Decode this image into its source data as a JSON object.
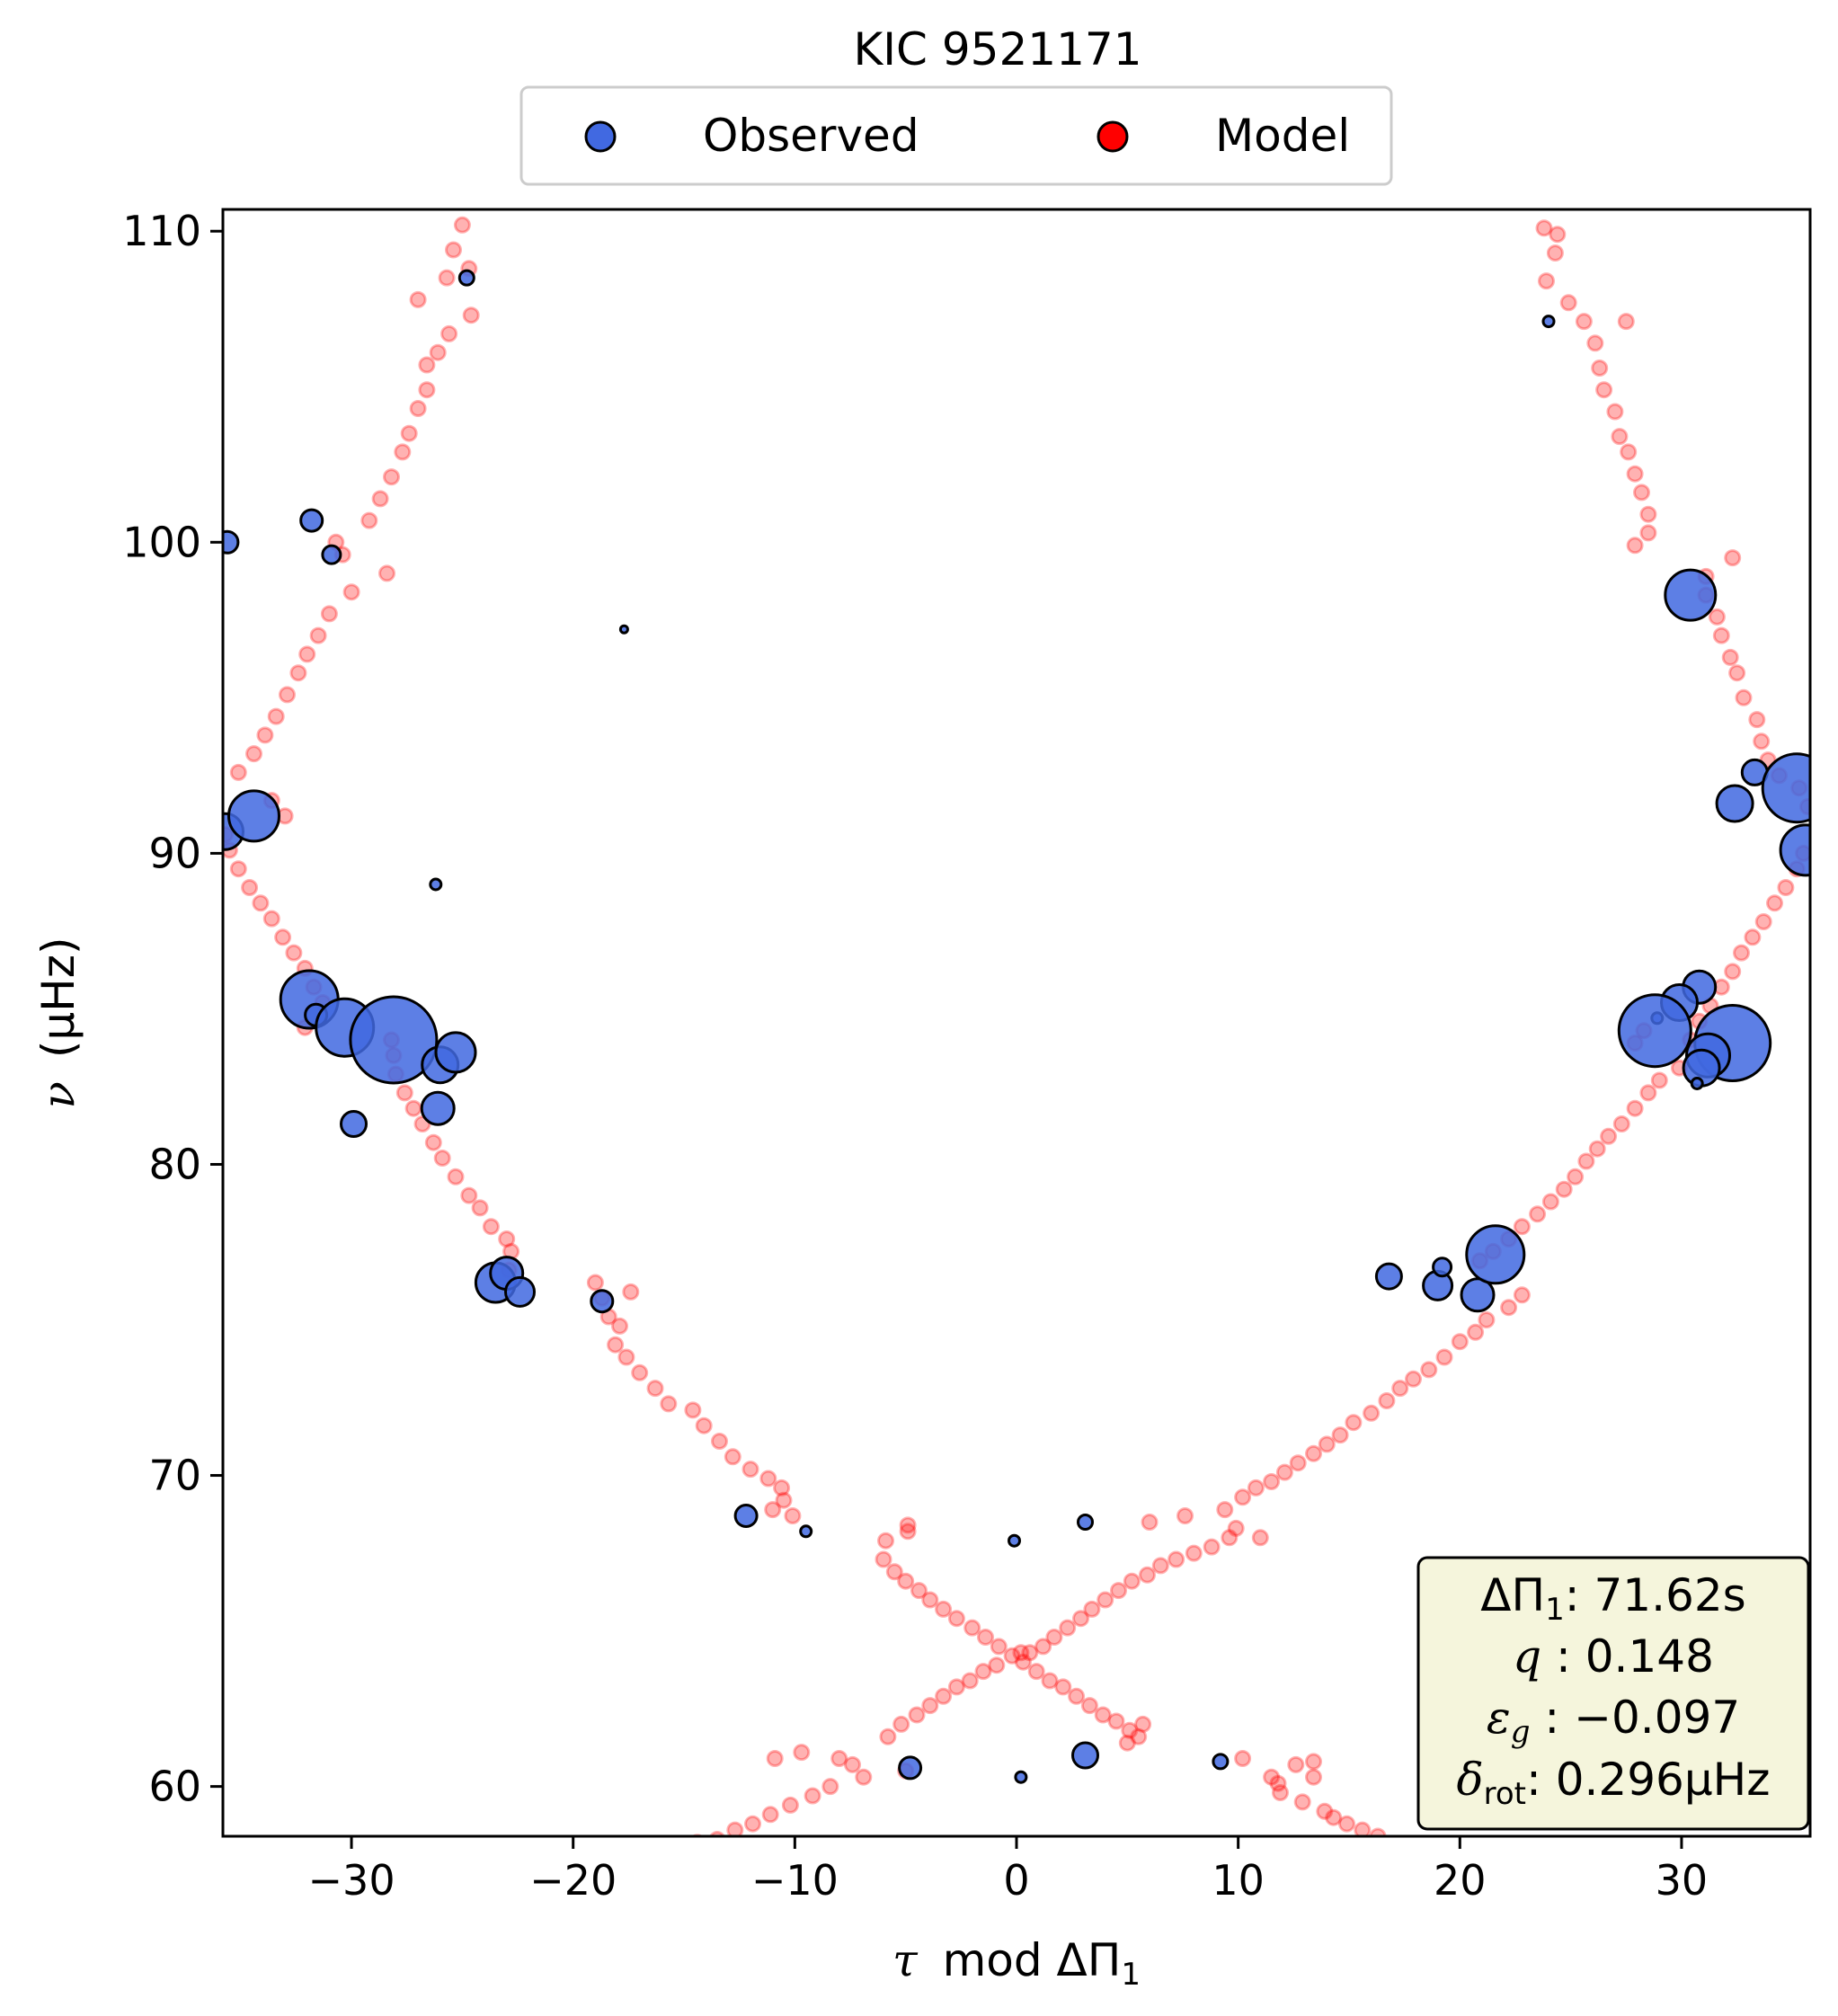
{
  "chart_data": {
    "type": "scatter",
    "title": "KIC 9521171",
    "xlabel_symbol": "τ",
    "xlabel_rest": "mod ΔΠ",
    "xlabel_sub": "1",
    "ylabel_symbol": "ν",
    "ylabel_rest": "(μHz)",
    "xlim": [
      -35.8,
      35.8
    ],
    "ylim": [
      58.4,
      110.7
    ],
    "xticks": [
      -30,
      -20,
      -10,
      0,
      10,
      20,
      30
    ],
    "yticks": [
      60,
      70,
      80,
      90,
      100,
      110
    ],
    "xtick_labels": [
      "−30",
      "−20",
      "−10",
      "0",
      "10",
      "20",
      "30"
    ],
    "ytick_labels": [
      "60",
      "70",
      "80",
      "90",
      "100",
      "110"
    ],
    "grid": false,
    "legend": {
      "placement": "top-center",
      "entries": [
        "Observed",
        "Model"
      ]
    },
    "colors": {
      "observed": "#4169e1",
      "model": "#ff0000",
      "info_box": "#f5f5dc"
    },
    "info_box": {
      "line1_symbol": "ΔΠ",
      "line1_sub": "1",
      "line1_value": ": 71.62s",
      "line2_symbol": "q",
      "line2_value": " :  0.148",
      "line3_symbol": "ε",
      "line3_sub": "g",
      "line3_value": " : −0.097",
      "line4_symbol": "δ",
      "line4_sub": "rot",
      "line4_value": ": 0.296μHz"
    },
    "series": [
      {
        "name": "Model",
        "points": [
          [
            -25.0,
            110.2
          ],
          [
            -25.4,
            109.4
          ],
          [
            -24.7,
            108.8
          ],
          [
            -25.7,
            108.5
          ],
          [
            -27.0,
            107.8
          ],
          [
            -24.6,
            107.3
          ],
          [
            -25.6,
            106.7
          ],
          [
            -26.1,
            106.1
          ],
          [
            -26.6,
            105.7
          ],
          [
            -26.6,
            104.9
          ],
          [
            -27.0,
            104.3
          ],
          [
            -27.4,
            103.5
          ],
          [
            -27.7,
            102.9
          ],
          [
            -28.2,
            102.1
          ],
          [
            -28.7,
            101.4
          ],
          [
            -29.2,
            100.7
          ],
          [
            -30.7,
            100.0
          ],
          [
            -30.4,
            99.6
          ],
          [
            -28.4,
            99.0
          ],
          [
            -30.0,
            98.4
          ],
          [
            -31.0,
            97.7
          ],
          [
            -31.5,
            97.0
          ],
          [
            -32.0,
            96.4
          ],
          [
            -32.4,
            95.8
          ],
          [
            -32.9,
            95.1
          ],
          [
            -33.4,
            94.4
          ],
          [
            -33.9,
            93.8
          ],
          [
            -34.4,
            93.2
          ],
          [
            -35.1,
            92.6
          ],
          [
            -33.6,
            91.7
          ],
          [
            -33.0,
            91.2
          ],
          [
            -35.7,
            90.6
          ],
          [
            -35.5,
            90.1
          ],
          [
            -35.1,
            89.5
          ],
          [
            -34.6,
            88.9
          ],
          [
            -34.1,
            88.4
          ],
          [
            -33.6,
            87.9
          ],
          [
            -33.1,
            87.3
          ],
          [
            -32.6,
            86.8
          ],
          [
            -32.1,
            86.3
          ],
          [
            -31.7,
            85.7
          ],
          [
            -31.3,
            85.2
          ],
          [
            -32.1,
            84.4
          ],
          [
            -28.2,
            84.0
          ],
          [
            -28.1,
            83.5
          ],
          [
            -28.0,
            82.9
          ],
          [
            -27.6,
            82.3
          ],
          [
            -27.2,
            81.8
          ],
          [
            -26.8,
            81.3
          ],
          [
            -26.3,
            80.7
          ],
          [
            -25.9,
            80.2
          ],
          [
            -25.3,
            79.6
          ],
          [
            -24.7,
            79.0
          ],
          [
            -24.2,
            78.6
          ],
          [
            -23.7,
            78.0
          ],
          [
            -23.0,
            77.6
          ],
          [
            -22.8,
            77.2
          ],
          [
            -22.9,
            76.6
          ],
          [
            -19.0,
            76.2
          ],
          [
            -18.7,
            75.7
          ],
          [
            -18.4,
            75.1
          ],
          [
            -17.9,
            74.8
          ],
          [
            -18.1,
            74.2
          ],
          [
            -17.6,
            73.8
          ],
          [
            -17.0,
            73.3
          ],
          [
            -16.3,
            72.8
          ],
          [
            -15.7,
            72.3
          ],
          [
            -14.6,
            72.1
          ],
          [
            -14.1,
            71.6
          ],
          [
            -13.4,
            71.1
          ],
          [
            -12.8,
            70.6
          ],
          [
            -12.0,
            70.2
          ],
          [
            -11.2,
            69.9
          ],
          [
            -10.6,
            69.6
          ],
          [
            -10.5,
            69.2
          ],
          [
            -11.0,
            68.9
          ],
          [
            -10.1,
            68.7
          ],
          [
            -17.4,
            75.9
          ],
          [
            -5.9,
            67.9
          ],
          [
            -6.0,
            67.3
          ],
          [
            -5.5,
            66.9
          ],
          [
            -5.0,
            66.6
          ],
          [
            -4.4,
            66.3
          ],
          [
            -3.9,
            66.0
          ],
          [
            -3.3,
            65.7
          ],
          [
            -2.7,
            65.4
          ],
          [
            -2.0,
            65.1
          ],
          [
            -1.4,
            64.8
          ],
          [
            -0.8,
            64.5
          ],
          [
            -0.2,
            64.2
          ],
          [
            0.3,
            64.0
          ],
          [
            0.9,
            63.7
          ],
          [
            1.5,
            63.4
          ],
          [
            2.1,
            63.2
          ],
          [
            2.7,
            62.9
          ],
          [
            3.3,
            62.6
          ],
          [
            3.9,
            62.3
          ],
          [
            4.5,
            62.1
          ],
          [
            5.1,
            61.8
          ],
          [
            5.5,
            61.6
          ],
          [
            5.0,
            61.4
          ],
          [
            5.7,
            62.0
          ],
          [
            -4.9,
            68.2
          ],
          [
            -4.9,
            68.4
          ],
          [
            0.2,
            64.3
          ],
          [
            -6.9,
            60.3
          ],
          [
            -9.7,
            61.1
          ],
          [
            -8.0,
            60.9
          ],
          [
            -5.0,
            60.5
          ],
          [
            -10.9,
            60.9
          ],
          [
            -7.4,
            60.7
          ],
          [
            -5.8,
            61.6
          ],
          [
            -5.2,
            62.0
          ],
          [
            -4.5,
            62.3
          ],
          [
            -3.9,
            62.6
          ],
          [
            -3.3,
            62.9
          ],
          [
            -2.7,
            63.2
          ],
          [
            -2.1,
            63.4
          ],
          [
            -1.5,
            63.7
          ],
          [
            -0.9,
            63.9
          ],
          [
            -8.4,
            60.0
          ],
          [
            -9.2,
            59.7
          ],
          [
            -10.2,
            59.4
          ],
          [
            -11.1,
            59.1
          ],
          [
            -11.9,
            58.8
          ],
          [
            -12.7,
            58.6
          ],
          [
            -13.5,
            58.3
          ],
          [
            -14.4,
            58.2
          ],
          [
            -15.1,
            58.0
          ],
          [
            0.6,
            64.3
          ],
          [
            1.2,
            64.5
          ],
          [
            1.7,
            64.8
          ],
          [
            2.3,
            65.1
          ],
          [
            2.9,
            65.4
          ],
          [
            3.4,
            65.7
          ],
          [
            4.0,
            66.0
          ],
          [
            4.6,
            66.3
          ],
          [
            5.2,
            66.6
          ],
          [
            5.9,
            66.8
          ],
          [
            6.5,
            67.1
          ],
          [
            7.2,
            67.3
          ],
          [
            8.0,
            67.5
          ],
          [
            8.8,
            67.7
          ],
          [
            9.6,
            68.0
          ],
          [
            6.0,
            68.5
          ],
          [
            7.6,
            68.7
          ],
          [
            9.4,
            68.9
          ],
          [
            9.9,
            68.3
          ],
          [
            11.0,
            68.0
          ],
          [
            10.2,
            69.3
          ],
          [
            10.8,
            69.6
          ],
          [
            11.5,
            69.8
          ],
          [
            12.1,
            70.1
          ],
          [
            12.7,
            70.4
          ],
          [
            13.4,
            70.7
          ],
          [
            14.0,
            71.0
          ],
          [
            14.6,
            71.3
          ],
          [
            15.2,
            71.7
          ],
          [
            16.0,
            72.0
          ],
          [
            16.7,
            72.4
          ],
          [
            17.3,
            72.8
          ],
          [
            17.9,
            73.1
          ],
          [
            18.6,
            73.4
          ],
          [
            19.3,
            73.8
          ],
          [
            20.0,
            74.3
          ],
          [
            20.7,
            74.6
          ],
          [
            21.2,
            75.0
          ],
          [
            22.2,
            75.4
          ],
          [
            22.8,
            75.8
          ],
          [
            20.9,
            76.9
          ],
          [
            21.5,
            77.2
          ],
          [
            22.2,
            77.6
          ],
          [
            22.8,
            78.0
          ],
          [
            23.5,
            78.4
          ],
          [
            24.1,
            78.8
          ],
          [
            24.7,
            79.2
          ],
          [
            25.2,
            79.6
          ],
          [
            25.7,
            80.1
          ],
          [
            26.2,
            80.5
          ],
          [
            26.7,
            80.9
          ],
          [
            27.3,
            81.3
          ],
          [
            27.9,
            81.8
          ],
          [
            28.5,
            82.3
          ],
          [
            29.0,
            82.7
          ],
          [
            27.9,
            83.9
          ],
          [
            28.3,
            84.3
          ],
          [
            29.9,
            83.1
          ],
          [
            30.4,
            84.0
          ],
          [
            30.8,
            84.6
          ],
          [
            31.3,
            85.1
          ],
          [
            31.8,
            85.7
          ],
          [
            32.3,
            86.2
          ],
          [
            32.7,
            86.8
          ],
          [
            33.2,
            87.3
          ],
          [
            33.7,
            87.8
          ],
          [
            34.2,
            88.4
          ],
          [
            34.7,
            88.9
          ],
          [
            35.2,
            89.5
          ],
          [
            35.5,
            90.0
          ],
          [
            35.7,
            91.5
          ],
          [
            35.3,
            92.1
          ],
          [
            34.4,
            92.5
          ],
          [
            33.9,
            93.0
          ],
          [
            33.6,
            93.6
          ],
          [
            33.4,
            94.3
          ],
          [
            32.8,
            95.0
          ],
          [
            32.5,
            95.8
          ],
          [
            32.2,
            96.3
          ],
          [
            31.8,
            97.0
          ],
          [
            31.6,
            97.6
          ],
          [
            31.1,
            98.3
          ],
          [
            31.1,
            98.9
          ],
          [
            32.3,
            99.5
          ],
          [
            27.9,
            99.9
          ],
          [
            28.5,
            100.3
          ],
          [
            28.5,
            100.9
          ],
          [
            28.2,
            101.6
          ],
          [
            27.9,
            102.2
          ],
          [
            27.6,
            102.9
          ],
          [
            27.2,
            103.4
          ],
          [
            27.0,
            104.2
          ],
          [
            26.5,
            104.9
          ],
          [
            26.3,
            105.6
          ],
          [
            26.1,
            106.4
          ],
          [
            25.6,
            107.1
          ],
          [
            24.9,
            107.7
          ],
          [
            24.3,
            109.3
          ],
          [
            23.8,
            110.1
          ],
          [
            24.4,
            109.9
          ],
          [
            23.9,
            108.4
          ],
          [
            27.5,
            107.1
          ],
          [
            10.2,
            60.9
          ],
          [
            11.5,
            60.3
          ],
          [
            11.8,
            60.1
          ],
          [
            11.9,
            59.8
          ],
          [
            12.6,
            60.7
          ],
          [
            13.4,
            60.8
          ],
          [
            12.9,
            59.5
          ],
          [
            13.9,
            59.2
          ],
          [
            14.3,
            59.0
          ],
          [
            14.9,
            58.8
          ],
          [
            15.6,
            58.6
          ],
          [
            16.3,
            58.4
          ],
          [
            13.4,
            60.3
          ]
        ]
      },
      {
        "name": "Observed",
        "points": [
          [
            -24.8,
            108.5,
            4
          ],
          [
            -35.6,
            100.0,
            6
          ],
          [
            -31.8,
            100.7,
            6
          ],
          [
            -30.9,
            99.6,
            5
          ],
          [
            -17.7,
            97.2,
            2
          ],
          [
            -35.7,
            90.7,
            10
          ],
          [
            -34.4,
            91.2,
            14
          ],
          [
            -26.2,
            89.0,
            3
          ],
          [
            -31.9,
            85.3,
            16
          ],
          [
            -31.6,
            84.8,
            6
          ],
          [
            -30.3,
            84.4,
            16
          ],
          [
            -28.1,
            84.0,
            24
          ],
          [
            -26.0,
            83.2,
            10
          ],
          [
            -25.3,
            83.6,
            11
          ],
          [
            -26.1,
            81.8,
            9
          ],
          [
            -29.9,
            81.3,
            7
          ],
          [
            -23.5,
            76.2,
            11
          ],
          [
            -23.0,
            76.5,
            9
          ],
          [
            -22.4,
            75.9,
            8
          ],
          [
            -18.7,
            75.6,
            6
          ],
          [
            -12.2,
            68.7,
            6
          ],
          [
            -9.5,
            68.2,
            3
          ],
          [
            -4.8,
            60.6,
            6
          ],
          [
            -0.1,
            67.9,
            3
          ],
          [
            0.2,
            60.3,
            3
          ],
          [
            3.1,
            68.5,
            4
          ],
          [
            3.1,
            61.0,
            7
          ],
          [
            9.2,
            60.8,
            4
          ],
          [
            16.8,
            76.4,
            7
          ],
          [
            19.0,
            76.1,
            8
          ],
          [
            19.2,
            76.7,
            5
          ],
          [
            20.8,
            75.8,
            9
          ],
          [
            21.6,
            77.1,
            16
          ],
          [
            24.0,
            107.1,
            3
          ],
          [
            30.4,
            98.3,
            14
          ],
          [
            33.3,
            92.6,
            7
          ],
          [
            35.2,
            92.1,
            19
          ],
          [
            32.4,
            91.6,
            10
          ],
          [
            35.6,
            90.1,
            14
          ],
          [
            30.8,
            85.7,
            9
          ],
          [
            29.9,
            85.2,
            10
          ],
          [
            28.9,
            84.7,
            3
          ],
          [
            28.8,
            84.3,
            20
          ],
          [
            32.3,
            83.9,
            21
          ],
          [
            31.2,
            83.5,
            12
          ],
          [
            30.9,
            83.1,
            10
          ],
          [
            30.7,
            82.6,
            3
          ]
        ]
      }
    ]
  }
}
